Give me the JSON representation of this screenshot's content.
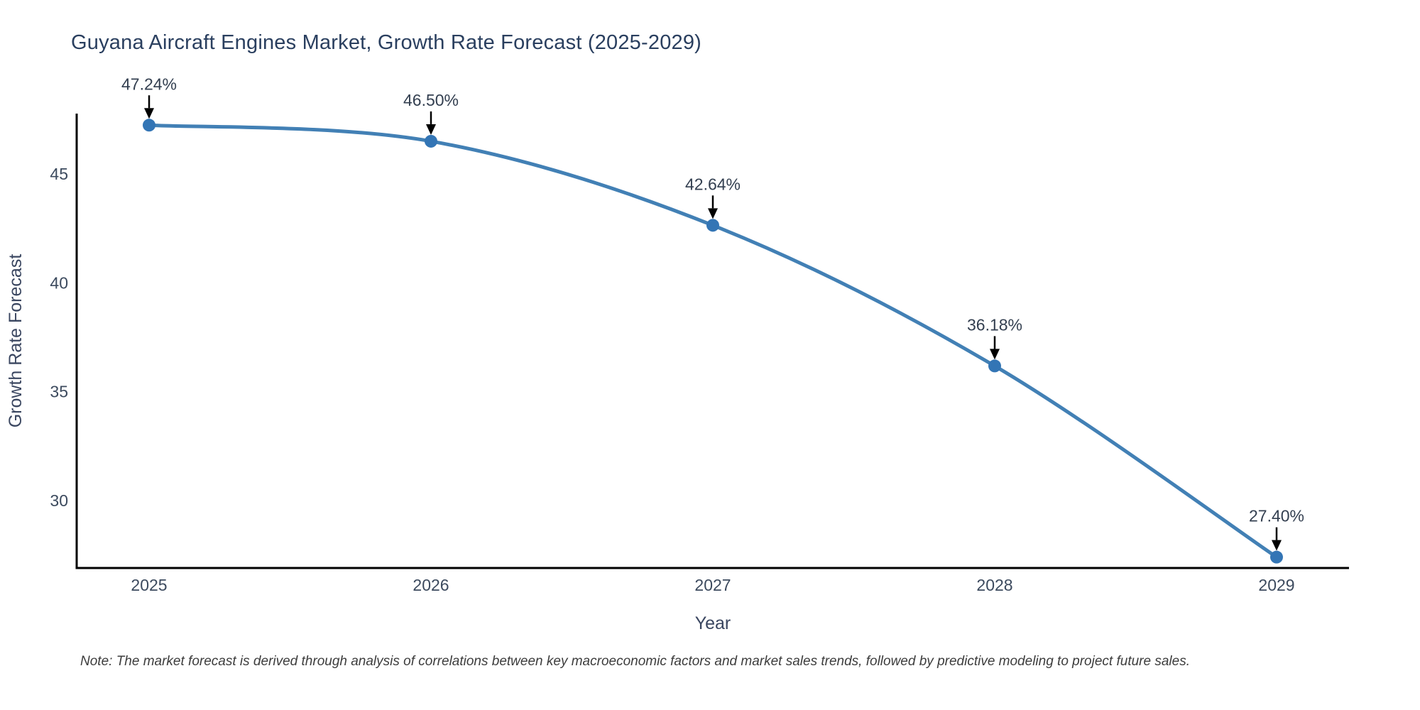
{
  "note": "Note: The market forecast is derived through analysis of correlations between key macroeconomic factors and market sales trends, followed by predictive modeling to project future sales.",
  "chart_data": {
    "type": "line",
    "title": "Guyana Aircraft Engines Market, Growth Rate Forecast (2025-2029)",
    "xlabel": "Year",
    "ylabel": "Growth Rate Forecast",
    "x": [
      2025,
      2026,
      2027,
      2028,
      2029
    ],
    "series": [
      {
        "name": "Growth Rate Forecast",
        "values": [
          47.24,
          46.5,
          42.64,
          36.18,
          27.4
        ]
      }
    ],
    "data_labels": [
      "47.24%",
      "46.50%",
      "42.64%",
      "36.18%",
      "27.40%"
    ],
    "y_ticks": [
      30,
      35,
      40,
      45
    ],
    "ylim": [
      26.9,
      47.77
    ],
    "grid": false,
    "legend": false,
    "line_shape": "spline",
    "annotation_style": "black-down-arrow",
    "colors": {
      "line": "#4280b5",
      "marker": "#3375b5",
      "axis": "#000000",
      "title_text": "#2a3f5f",
      "tick_text": "#3c4a5e",
      "axis_title_text": "#3a4660",
      "annotation_text": "#333f50",
      "annotation_arrow": "#000000",
      "note_text": "#3d3d3d"
    }
  }
}
